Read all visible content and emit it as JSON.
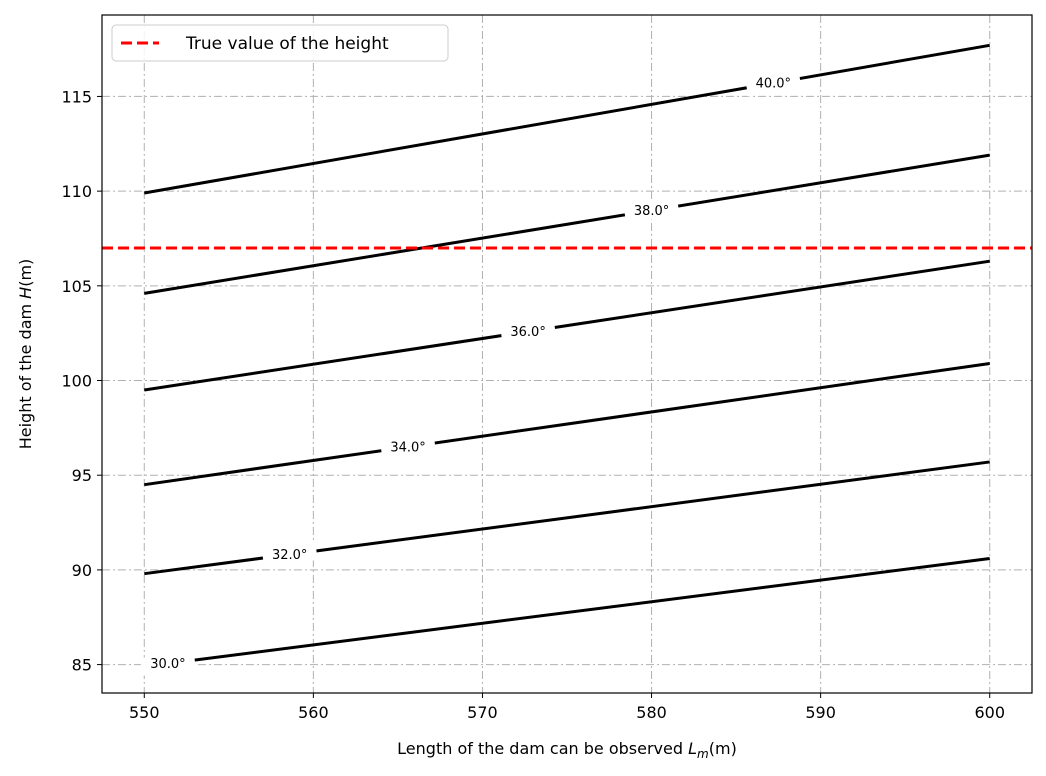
{
  "chart_data": {
    "type": "line",
    "title": "",
    "xlabel": "Length of the dam can be observed",
    "xlabel_symbol": "L",
    "xlabel_sub": "m",
    "xlabel_unit": "(m)",
    "ylabel": "Height of the dam",
    "ylabel_symbol": "H",
    "ylabel_unit": "(m)",
    "xlim": [
      547.5,
      602.5
    ],
    "ylim": [
      83.5,
      119.3
    ],
    "xticks": [
      550,
      560,
      570,
      580,
      590,
      600
    ],
    "yticks": [
      85,
      90,
      95,
      100,
      105,
      110,
      115
    ],
    "grid": true,
    "legend": {
      "placement": "top-left",
      "entries": [
        {
          "label": "True value of the height",
          "color": "#ff0000",
          "style": "dashed"
        }
      ]
    },
    "reference_line": {
      "y": 107,
      "color": "#ff0000",
      "style": "dashed"
    },
    "series": [
      {
        "label": "30.0°",
        "x": [
          550,
          600
        ],
        "y": [
          84.9,
          90.6
        ],
        "label_x": 551.4
      },
      {
        "label": "32.0°",
        "x": [
          550,
          600
        ],
        "y": [
          89.8,
          95.7
        ],
        "label_x": 558.6
      },
      {
        "label": "34.0°",
        "x": [
          550,
          600
        ],
        "y": [
          94.5,
          100.9
        ],
        "label_x": 565.6
      },
      {
        "label": "36.0°",
        "x": [
          550,
          600
        ],
        "y": [
          99.5,
          106.3
        ],
        "label_x": 572.7
      },
      {
        "label": "38.0°",
        "x": [
          550,
          600
        ],
        "y": [
          104.6,
          111.9
        ],
        "label_x": 580.0
      },
      {
        "label": "40.0°",
        "x": [
          550,
          600
        ],
        "y": [
          109.9,
          117.7
        ],
        "label_x": 587.2
      }
    ],
    "line_color": "#000000",
    "ref_color": "#ff0000"
  }
}
